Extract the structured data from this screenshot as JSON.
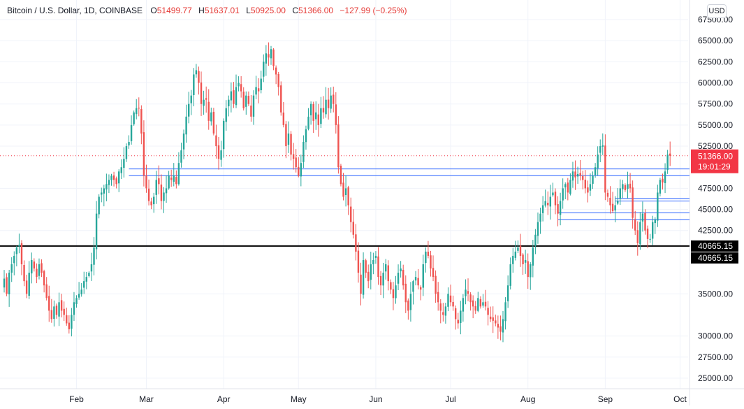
{
  "header": {
    "symbol": "Bitcoin / U.S. Dollar, 1D, COINBASE",
    "open_label": "O",
    "open_value": "51499.77",
    "high_label": "H",
    "high_value": "51637.01",
    "low_label": "L",
    "low_value": "50925.00",
    "close_label": "C",
    "close_value": "51366.00",
    "change_value": "−127.99 (−0.25%)"
  },
  "currency_button": "USD",
  "colors": {
    "up": "#26a69a",
    "down": "#ef5350",
    "price_line": "#f23645",
    "blue_lines": "#2962ff",
    "support_line": "#000000",
    "grid": "#f0f3fa"
  },
  "chart_data": {
    "type": "candlestick",
    "symbol": "BTCUSD",
    "exchange": "COINBASE",
    "interval": "1D",
    "ylim": [
      24000,
      68000
    ],
    "y_ticks": [
      25000,
      27500,
      30000,
      35000,
      42500,
      45000,
      47500,
      52500,
      55000,
      57500,
      60000,
      62500,
      65000,
      67500
    ],
    "y_tick_labels": [
      "25000.00",
      "27500.00",
      "30000.00",
      "35000.00",
      "42500.00",
      "45000.00",
      "47500.00",
      "52500.00",
      "55000.00",
      "57500.00",
      "60000.00",
      "62500.00",
      "65000.00",
      "67500.00"
    ],
    "x_labels": [
      "Feb",
      "Mar",
      "Apr",
      "May",
      "Jun",
      "Jul",
      "Aug",
      "Sep",
      "Oct"
    ],
    "x_label_index": [
      29,
      57,
      88,
      118,
      149,
      179,
      210,
      241,
      271
    ],
    "last_price": {
      "value": "51366.00",
      "countdown": "19:01:29",
      "price": 51366
    },
    "support": {
      "value": "40665.15",
      "price": 40665.15,
      "labels": [
        "40665.15",
        "40665.15"
      ]
    },
    "horizontal_lines": [
      {
        "price": 49800,
        "from_index": 50
      },
      {
        "price": 49000,
        "from_index": 50
      },
      {
        "price": 46300,
        "from_index": 245
      },
      {
        "price": 46000,
        "from_index": 245
      },
      {
        "price": 44600,
        "from_index": 222
      },
      {
        "price": 43800,
        "from_index": 222
      }
    ],
    "closes": [
      36800,
      35000,
      37500,
      38500,
      39500,
      40500,
      40800,
      38500,
      36500,
      35000,
      37500,
      39000,
      38000,
      37000,
      38500,
      37500,
      36000,
      34500,
      33000,
      32000,
      33500,
      32500,
      34000,
      33000,
      32500,
      31500,
      30800,
      32500,
      34000,
      34500,
      35000,
      35500,
      36500,
      37000,
      37500,
      38500,
      40500,
      44500,
      46500,
      47000,
      47500,
      48000,
      48500,
      49000,
      48500,
      48000,
      49500,
      50000,
      51000,
      52500,
      53000,
      55000,
      56500,
      57000,
      57000,
      54000,
      49000,
      47500,
      46000,
      45500,
      46500,
      48500,
      48000,
      46000,
      47000,
      47500,
      49000,
      48500,
      49000,
      48000,
      50500,
      52000,
      54000,
      56000,
      57500,
      58500,
      61000,
      61500,
      60000,
      57500,
      58000,
      58000,
      55500,
      56500,
      54000,
      52500,
      51000,
      52000,
      55500,
      57000,
      58000,
      59000,
      57500,
      59500,
      60000,
      59000,
      57000,
      58500,
      57500,
      56000,
      58500,
      59500,
      59000,
      60500,
      62500,
      63500,
      63000,
      64000,
      62000,
      61000,
      59500,
      56500,
      55000,
      52500,
      54000,
      51500,
      51000,
      50000,
      49000,
      50500,
      53000,
      54500,
      56000,
      57500,
      55500,
      56500,
      55000,
      57000,
      56500,
      58000,
      57000,
      58500,
      57500,
      55000,
      50000,
      48000,
      46500,
      47500,
      45500,
      43500,
      42000,
      40000,
      37500,
      35000,
      39000,
      37500,
      36500,
      38500,
      39000,
      39500,
      37000,
      36000,
      37500,
      38500,
      36500,
      35500,
      34500,
      36000,
      37500,
      38000,
      36000,
      34000,
      33000,
      35000,
      36500,
      37000,
      36000,
      35500,
      38500,
      40000,
      39500,
      38000,
      37000,
      35000,
      34000,
      33000,
      32500,
      33500,
      35000,
      34000,
      33500,
      32000,
      31500,
      33000,
      34500,
      35500,
      35000,
      34000,
      33500,
      33000,
      34500,
      33500,
      34000,
      33500,
      32500,
      32000,
      31800,
      31500,
      31000,
      30500,
      32000,
      34000,
      36000,
      38500,
      39500,
      40000,
      40500,
      39500,
      38500,
      39000,
      37000,
      38500,
      40500,
      42000,
      43500,
      44500,
      45500,
      46000,
      45500,
      46500,
      47000,
      45500,
      44500,
      46000,
      47500,
      48000,
      47000,
      48500,
      49500,
      48800,
      49200,
      49000,
      48500,
      47500,
      47000,
      48000,
      49000,
      50000,
      51500,
      52500,
      52600,
      47000,
      46500,
      45500,
      44800,
      45500,
      46000,
      47500,
      48000,
      47300,
      48000,
      47500,
      44000,
      42500,
      41000,
      43500,
      44500,
      42500,
      41500,
      41500,
      43500,
      43800,
      47000,
      48500,
      48200,
      49500,
      51500,
      51366
    ]
  }
}
